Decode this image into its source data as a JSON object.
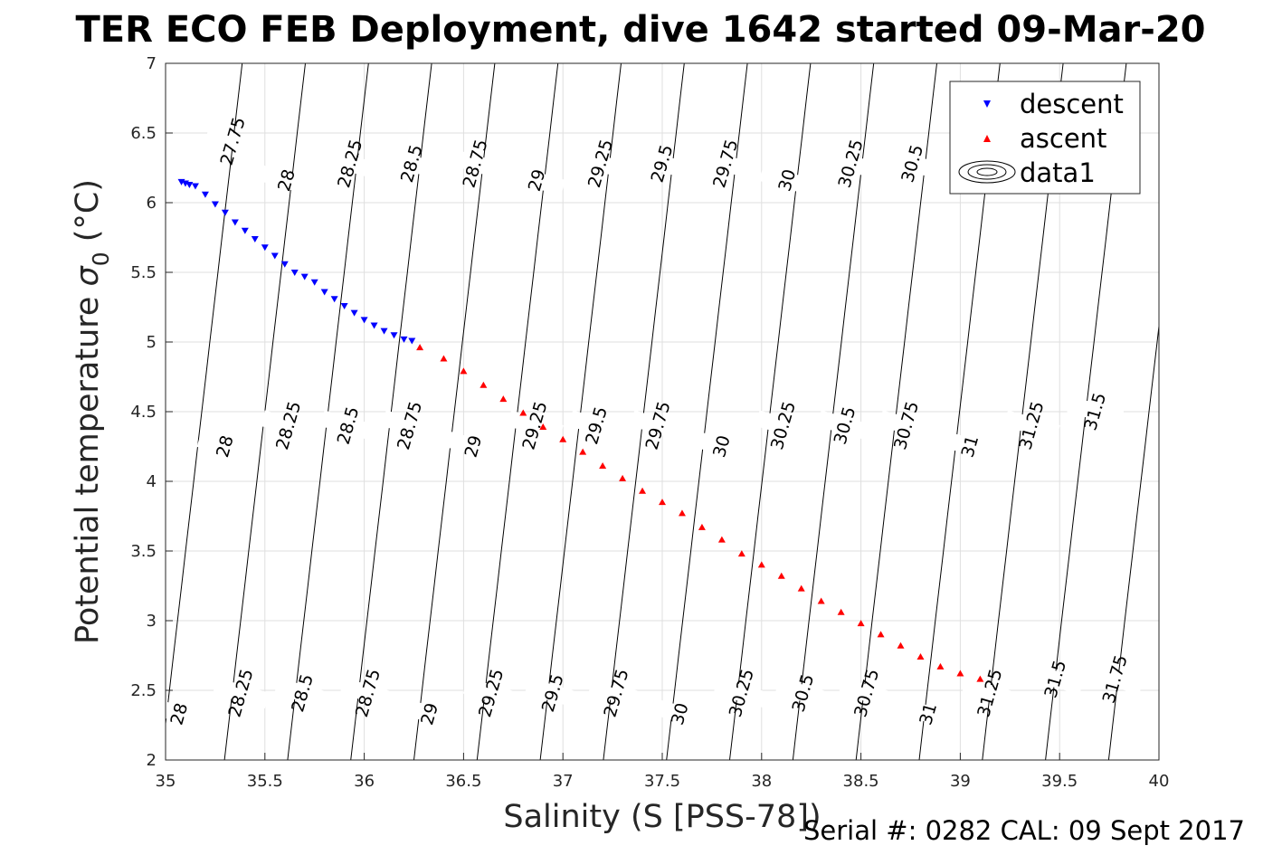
{
  "title": "TER ECO FEB Deployment, dive 1642 started 09-Mar-20",
  "footer": "Serial #: 0282  CAL: 09 Sept 2017",
  "chart_data": {
    "type": "scatter",
    "xlabel": "Salinity (S [PSS-78])",
    "ylabel_text": "Potential temperature ",
    "ylabel_symbol": "σ",
    "ylabel_subscript": "0",
    "ylabel_unit": " (°C)",
    "xlim": [
      35,
      40
    ],
    "ylim": [
      2,
      7
    ],
    "xticks": [
      "35",
      "35.5",
      "36",
      "36.5",
      "37",
      "37.5",
      "38",
      "38.5",
      "39",
      "39.5",
      "40"
    ],
    "yticks": [
      "2",
      "2.5",
      "3",
      "3.5",
      "4",
      "4.5",
      "5",
      "5.5",
      "6",
      "6.5",
      "7"
    ],
    "grid": true,
    "legend_position": "top-right",
    "series": [
      {
        "name": "descent",
        "marker": "triangle-down",
        "color": "#0000ff",
        "x": [
          35.08,
          35.1,
          35.12,
          35.15,
          35.2,
          35.25,
          35.3,
          35.35,
          35.4,
          35.45,
          35.5,
          35.55,
          35.6,
          35.65,
          35.7,
          35.75,
          35.8,
          35.85,
          35.9,
          35.95,
          36.0,
          36.05,
          36.1,
          36.15,
          36.2,
          36.24
        ],
        "y": [
          6.15,
          6.14,
          6.13,
          6.12,
          6.06,
          5.99,
          5.93,
          5.86,
          5.8,
          5.74,
          5.68,
          5.62,
          5.56,
          5.5,
          5.47,
          5.43,
          5.36,
          5.31,
          5.26,
          5.21,
          5.16,
          5.12,
          5.08,
          5.05,
          5.02,
          5.01
        ]
      },
      {
        "name": "ascent",
        "marker": "triangle-up",
        "color": "#ff0000",
        "x": [
          36.28,
          36.4,
          36.5,
          36.6,
          36.7,
          36.8,
          36.9,
          37.0,
          37.1,
          37.2,
          37.3,
          37.4,
          37.5,
          37.6,
          37.7,
          37.8,
          37.9,
          38.0,
          38.1,
          38.2,
          38.3,
          38.4,
          38.5,
          38.6,
          38.7,
          38.8,
          38.9,
          39.0,
          39.1
        ],
        "y": [
          4.96,
          4.88,
          4.79,
          4.69,
          4.59,
          4.49,
          4.39,
          4.3,
          4.21,
          4.11,
          4.02,
          3.93,
          3.85,
          3.77,
          3.67,
          3.58,
          3.48,
          3.4,
          3.32,
          3.23,
          3.14,
          3.06,
          2.98,
          2.9,
          2.82,
          2.74,
          2.67,
          2.62,
          2.58
        ]
      },
      {
        "name": "data1",
        "marker": "contour",
        "color": "#000000"
      }
    ],
    "contour_levels": [
      "27.75",
      "28",
      "28.25",
      "28.5",
      "28.75",
      "29",
      "29.25",
      "29.5",
      "29.75",
      "30",
      "30.25",
      "30.5",
      "30.75",
      "31",
      "31.25",
      "31.5",
      "31.75"
    ],
    "contour_labels": [
      {
        "text": "27.75",
        "s": 35.34,
        "t": 6.44
      },
      {
        "text": "28",
        "s": 35.61,
        "t": 6.16
      },
      {
        "text": "28.25",
        "s": 35.93,
        "t": 6.28
      },
      {
        "text": "28.5",
        "s": 36.24,
        "t": 6.28
      },
      {
        "text": "28.75",
        "s": 36.56,
        "t": 6.28
      },
      {
        "text": "29",
        "s": 36.87,
        "t": 6.16
      },
      {
        "text": "29.25",
        "s": 37.19,
        "t": 6.28
      },
      {
        "text": "29.5",
        "s": 37.5,
        "t": 6.28
      },
      {
        "text": "29.75",
        "s": 37.82,
        "t": 6.28
      },
      {
        "text": "30",
        "s": 38.13,
        "t": 6.16
      },
      {
        "text": "30.25",
        "s": 38.45,
        "t": 6.28
      },
      {
        "text": "30.5",
        "s": 38.76,
        "t": 6.28
      },
      {
        "text": "28",
        "s": 35.3,
        "t": 4.25
      },
      {
        "text": "28.25",
        "s": 35.62,
        "t": 4.4
      },
      {
        "text": "28.5",
        "s": 35.92,
        "t": 4.4
      },
      {
        "text": "28.75",
        "s": 36.23,
        "t": 4.4
      },
      {
        "text": "29",
        "s": 36.55,
        "t": 4.25
      },
      {
        "text": "29.25",
        "s": 36.86,
        "t": 4.4
      },
      {
        "text": "29.5",
        "s": 37.17,
        "t": 4.4
      },
      {
        "text": "29.75",
        "s": 37.48,
        "t": 4.4
      },
      {
        "text": "30",
        "s": 37.8,
        "t": 4.25
      },
      {
        "text": "30.25",
        "s": 38.11,
        "t": 4.4
      },
      {
        "text": "30.5",
        "s": 38.42,
        "t": 4.4
      },
      {
        "text": "30.75",
        "s": 38.73,
        "t": 4.4
      },
      {
        "text": "31",
        "s": 39.05,
        "t": 4.25
      },
      {
        "text": "31.25",
        "s": 39.36,
        "t": 4.4
      },
      {
        "text": "31.5",
        "s": 39.68,
        "t": 4.5
      },
      {
        "text": "28",
        "s": 35.07,
        "t": 2.33
      },
      {
        "text": "28.25",
        "s": 35.38,
        "t": 2.48
      },
      {
        "text": "28.5",
        "s": 35.69,
        "t": 2.48
      },
      {
        "text": "28.75",
        "s": 36.02,
        "t": 2.48
      },
      {
        "text": "29",
        "s": 36.33,
        "t": 2.33
      },
      {
        "text": "29.25",
        "s": 36.64,
        "t": 2.48
      },
      {
        "text": "29.5",
        "s": 36.95,
        "t": 2.48
      },
      {
        "text": "29.75",
        "s": 37.27,
        "t": 2.48
      },
      {
        "text": "30",
        "s": 37.59,
        "t": 2.33
      },
      {
        "text": "30.25",
        "s": 37.9,
        "t": 2.48
      },
      {
        "text": "30.5",
        "s": 38.21,
        "t": 2.48
      },
      {
        "text": "30.75",
        "s": 38.53,
        "t": 2.48
      },
      {
        "text": "31",
        "s": 38.84,
        "t": 2.33
      },
      {
        "text": "31.25",
        "s": 39.15,
        "t": 2.48
      },
      {
        "text": "31.5",
        "s": 39.48,
        "t": 2.58
      },
      {
        "text": "31.75",
        "s": 39.78,
        "t": 2.58
      }
    ]
  }
}
